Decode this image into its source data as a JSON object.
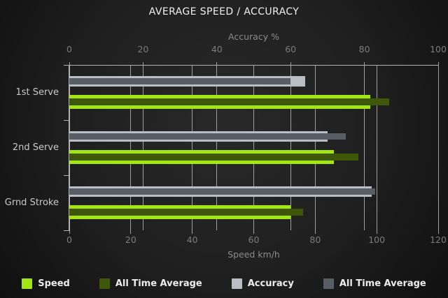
{
  "title": "AVERAGE SPEED / ACCURACY",
  "colors": {
    "speed": "#a2e613",
    "speed_all_time": "#3e5708",
    "accuracy": "#b8bec4",
    "accuracy_all_time": "#575e66",
    "grid": "#9f9f9f",
    "title_text": "#f0f0f0",
    "tick_text": "#7c7c7c",
    "category_text": "#c9c9c9",
    "legend_text": "#ededed"
  },
  "chart_data": {
    "type": "bar",
    "orientation": "horizontal",
    "title": "AVERAGE SPEED / ACCURACY",
    "categories": [
      "1st Serve",
      "2nd Serve",
      "Grnd Stroke"
    ],
    "axes": {
      "top": {
        "label": "Accuracy %",
        "min": 0,
        "max": 100,
        "ticks": [
          0,
          20,
          40,
          60,
          80,
          100
        ]
      },
      "bottom": {
        "label": "Speed km/h",
        "min": 0,
        "max": 120,
        "ticks": [
          0,
          20,
          40,
          60,
          80,
          100,
          120
        ]
      }
    },
    "series": [
      {
        "name": "Speed",
        "axis": "bottom",
        "color": "#a2e613",
        "values": [
          98,
          86,
          72
        ]
      },
      {
        "name": "All Time Average",
        "axis": "bottom",
        "color": "#3e5708",
        "values": [
          104,
          94,
          76
        ]
      },
      {
        "name": "Accuracy",
        "axis": "top",
        "color": "#b8bec4",
        "values": [
          64,
          70,
          82
        ]
      },
      {
        "name": "All Time Average",
        "axis": "top",
        "color": "#575e66",
        "values": [
          60,
          75,
          83
        ]
      }
    ],
    "grid": true,
    "legend_position": "bottom"
  }
}
